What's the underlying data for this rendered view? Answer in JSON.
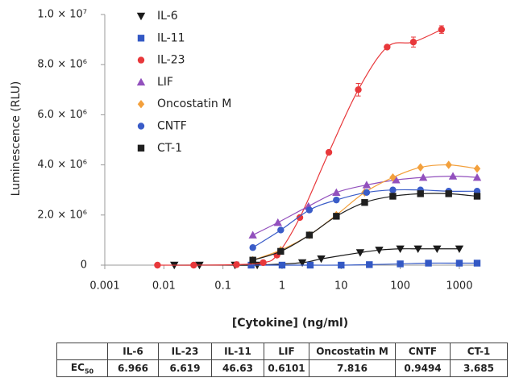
{
  "chart_data": {
    "type": "scatter",
    "xscale": "log",
    "x_label": "[Cytokine] (ng/ml)",
    "y_label": "Luminescence (RLU)",
    "xlim": [
      0.001,
      2000
    ],
    "xticks": [
      0.001,
      0.01,
      0.1,
      1,
      10,
      100,
      1000
    ],
    "ylim": [
      0,
      10000000
    ],
    "yticks": [
      0,
      {
        "value": 2000000,
        "label": "2.0 × 10⁶"
      },
      {
        "value": 4000000,
        "label": "4.0 × 10⁶"
      },
      {
        "value": 6000000,
        "label": "6.0 × 10⁶"
      },
      {
        "value": 8000000,
        "label": "8.0 × 10⁶"
      },
      {
        "value": 10000000,
        "label": "1.0 × 10⁷"
      }
    ],
    "legend": "upper-left",
    "series": [
      {
        "name": "IL-6",
        "color": "#1a1a1a",
        "marker": "triangle-down",
        "x": [
          0.015,
          0.04,
          0.16,
          0.38,
          2.2,
          4.6,
          21,
          44,
          100,
          200,
          420,
          1000
        ],
        "values": [
          0,
          0,
          0,
          0,
          100000,
          250000,
          500000,
          600000,
          650000,
          650000,
          650000,
          650000
        ]
      },
      {
        "name": "IL-11",
        "color": "#3358c4",
        "marker": "square",
        "x": [
          0.3,
          1,
          3,
          10,
          30,
          100,
          300,
          1000,
          2000
        ],
        "values": [
          0,
          0,
          0,
          0,
          20000,
          50000,
          80000,
          80000,
          80000
        ]
      },
      {
        "name": "IL-23",
        "color": "#e8383b",
        "marker": "circle",
        "x": [
          0.0078,
          0.032,
          0.17,
          0.48,
          0.82,
          2,
          6.2,
          19.5,
          60,
          167,
          500
        ],
        "values": [
          0,
          0,
          20000,
          100000,
          400000,
          1900000,
          4500000,
          7000000,
          8700000,
          8900000,
          9400000
        ],
        "errors": [
          null,
          null,
          null,
          null,
          null,
          null,
          null,
          250000,
          null,
          200000,
          150000
        ]
      },
      {
        "name": "LIF",
        "color": "#9250bd",
        "marker": "triangle-up",
        "x": [
          0.32,
          0.85,
          2.8,
          8.3,
          27,
          85,
          245,
          780,
          2000
        ],
        "values": [
          1200000,
          1700000,
          2350000,
          2900000,
          3200000,
          3400000,
          3500000,
          3550000,
          3500000
        ]
      },
      {
        "name": "Oncostatin M",
        "color": "#f3a03c",
        "marker": "diamond",
        "x": [
          0.32,
          0.95,
          2.9,
          8.3,
          25,
          75,
          220,
          660,
          2000
        ],
        "values": [
          200000,
          600000,
          1200000,
          2000000,
          2900000,
          3500000,
          3900000,
          4000000,
          3850000
        ]
      },
      {
        "name": "CNTF",
        "color": "#3a5cc8",
        "marker": "circle",
        "x": [
          0.32,
          0.95,
          2.9,
          8.3,
          27,
          75,
          220,
          660,
          2000
        ],
        "values": [
          700000,
          1400000,
          2200000,
          2600000,
          2900000,
          3000000,
          3000000,
          2950000,
          2950000
        ]
      },
      {
        "name": "CT-1",
        "color": "#1f1f1f",
        "marker": "square",
        "x": [
          0.32,
          0.95,
          2.9,
          8.3,
          25,
          75,
          220,
          660,
          2000
        ],
        "values": [
          200000,
          550000,
          1200000,
          1950000,
          2500000,
          2750000,
          2850000,
          2850000,
          2750000
        ]
      }
    ]
  },
  "table": {
    "columns": [
      "IL-6",
      "IL-23",
      "IL-11",
      "LIF",
      "Oncostatin M",
      "CNTF",
      "CT-1"
    ],
    "row_label": {
      "label": "EC",
      "subscript": "50"
    },
    "values": [
      6.966,
      6.619,
      46.63,
      0.6101,
      7.816,
      0.9494,
      3.685
    ]
  }
}
